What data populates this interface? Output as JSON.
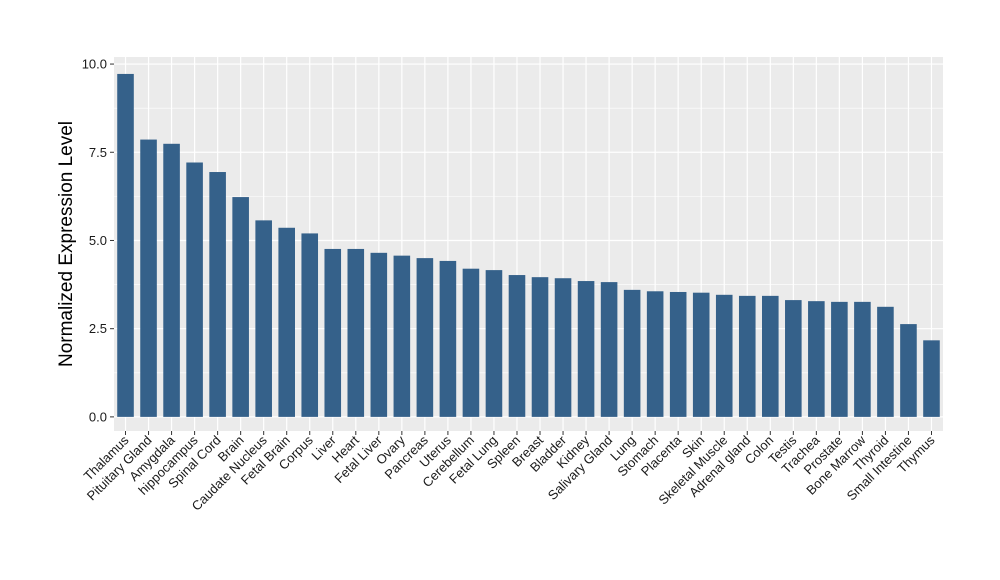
{
  "chart_data": {
    "type": "bar",
    "title": "",
    "xlabel": "",
    "ylabel": "Normalized Expression Level",
    "ylim": [
      -0.4,
      10.2
    ],
    "yticks": [
      0.0,
      2.5,
      5.0,
      7.5,
      10.0
    ],
    "ytick_labels": [
      "0.0",
      "2.5",
      "5.0",
      "7.5",
      "10.0"
    ],
    "grid": true,
    "legend": "none",
    "bar_color": "#35618a",
    "panel_color": "#ebebeb",
    "grid_color": "#ffffff",
    "categories": [
      "Thalamus",
      "Pituitary Gland",
      "Amygdala",
      "hippocampus",
      "Spinal Cord",
      "Brain",
      "Caudate Nucleus",
      "Fetal Brain",
      "Corpus",
      "Liver",
      "Heart",
      "Fetal Liver",
      "Ovary",
      "Pancreas",
      "Uterus",
      "Cerebellum",
      "Fetal Lung",
      "Spleen",
      "Breast",
      "Bladder",
      "Kidney",
      "Salivary Gland",
      "Lung",
      "Stomach",
      "Placenta",
      "Skin",
      "Skeletal Muscle",
      "Adrenal gland",
      "Colon",
      "Testis",
      "Trachea",
      "Prostate",
      "Bone Marrow",
      "Thyroid",
      "Small Intestine",
      "Thymus"
    ],
    "values": [
      9.72,
      7.86,
      7.74,
      7.21,
      6.94,
      6.23,
      5.57,
      5.36,
      5.2,
      4.76,
      4.76,
      4.65,
      4.57,
      4.5,
      4.42,
      4.2,
      4.16,
      4.02,
      3.96,
      3.93,
      3.85,
      3.82,
      3.6,
      3.56,
      3.54,
      3.52,
      3.46,
      3.43,
      3.43,
      3.31,
      3.28,
      3.26,
      3.26,
      3.12,
      2.63,
      2.17
    ]
  }
}
